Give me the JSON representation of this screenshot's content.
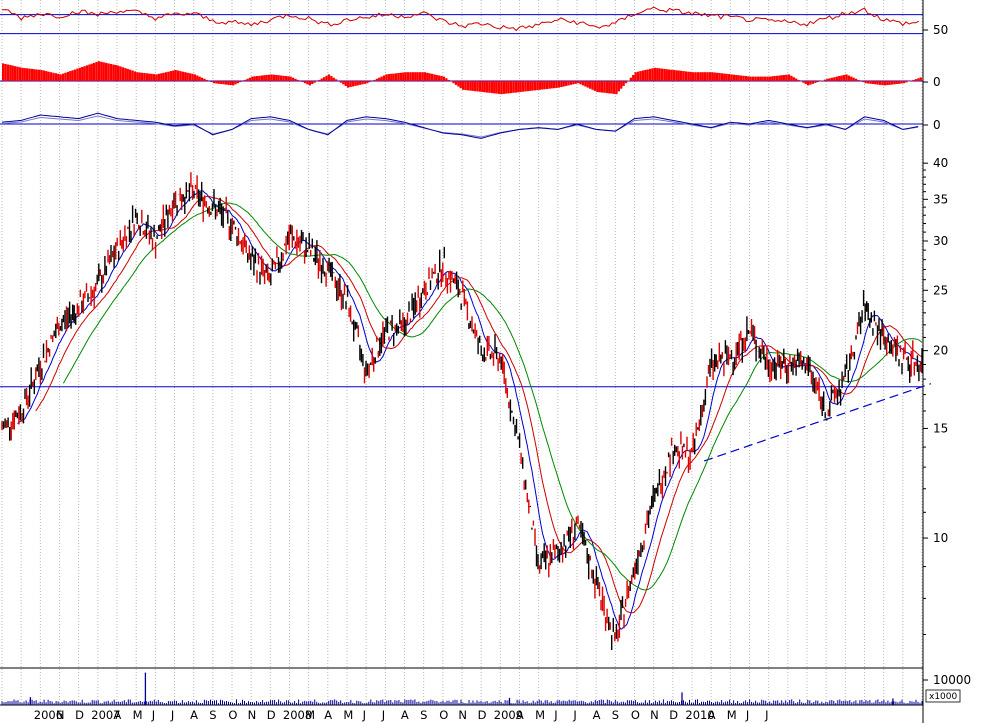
{
  "chart_data": {
    "type": "line",
    "x_type": "date",
    "x_range": [
      "2006-07",
      "2010-07"
    ],
    "price_axis": {
      "scale": "log",
      "ticks": [
        10,
        15,
        20,
        25,
        30,
        35,
        40
      ],
      "tick_labels": [
        "10",
        "15",
        "20",
        "25",
        "30",
        "35",
        "40"
      ],
      "ylim": [
        6.3,
        42
      ]
    },
    "support_line": 17.5,
    "trend_line": {
      "from": {
        "x": "2009-07-20",
        "y": 13.3
      },
      "to": {
        "x": "2010-07-15",
        "y": 17.7
      }
    },
    "price": {
      "x": [
        "2006-07",
        "2006-08",
        "2006-09",
        "2006-10",
        "2006-11",
        "2006-12",
        "2007-01",
        "2007-02",
        "2007-03",
        "2007-04",
        "2007-05",
        "2007-06",
        "2007-07",
        "2007-08",
        "2007-09",
        "2007-10",
        "2007-11",
        "2007-12",
        "2008-01",
        "2008-02",
        "2008-03",
        "2008-04",
        "2008-05",
        "2008-06",
        "2008-07",
        "2008-08",
        "2008-09",
        "2008-10",
        "2008-11",
        "2008-12",
        "2009-01",
        "2009-02",
        "2009-03",
        "2009-04",
        "2009-05",
        "2009-06",
        "2009-07",
        "2009-08",
        "2009-09",
        "2009-10",
        "2009-11",
        "2009-12",
        "2010-01",
        "2010-02",
        "2010-03",
        "2010-04",
        "2010-05",
        "2010-06",
        "2010-07"
      ],
      "values": [
        15.0,
        16.0,
        19.0,
        22.0,
        23.5,
        25.5,
        29.0,
        33.0,
        30.0,
        35.0,
        36.0,
        34.0,
        32.0,
        28.0,
        26.0,
        30.5,
        29.0,
        27.0,
        24.0,
        18.5,
        21.5,
        22.0,
        25.0,
        27.5,
        24.5,
        20.0,
        19.5,
        14.0,
        9.0,
        9.5,
        10.5,
        8.5,
        6.8,
        9.0,
        11.5,
        14.0,
        13.5,
        19.0,
        19.5,
        21.5,
        19.0,
        19.0,
        19.0,
        16.0,
        18.0,
        23.5,
        21.0,
        19.5,
        19.0
      ]
    },
    "moving_averages": [
      {
        "color": "#0000cc"
      },
      {
        "color": "#cc0000"
      },
      {
        "color": "#008800"
      }
    ],
    "indicators": [
      {
        "axis_label": "50",
        "color": "#cc0000",
        "style": "line",
        "values": [
          70,
          55,
          62,
          58,
          65,
          60,
          66,
          64,
          55,
          60,
          62,
          50,
          48,
          44,
          52,
          60,
          54,
          44,
          52,
          56,
          60,
          58,
          62,
          50,
          42,
          46,
          40,
          38,
          44,
          52,
          48,
          40,
          46,
          62,
          70,
          66,
          62,
          58,
          56,
          52,
          50,
          48,
          46,
          54,
          62,
          68,
          52,
          46,
          48
        ],
        "bands": [
          60,
          30
        ]
      },
      {
        "axis_label": "0",
        "color": "#ff0000",
        "style": "histogram",
        "values": [
          0.8,
          0.6,
          0.5,
          0.3,
          0.6,
          0.9,
          0.7,
          0.4,
          0.3,
          0.5,
          0.3,
          -0.1,
          -0.2,
          0.2,
          0.3,
          0.2,
          -0.2,
          0.3,
          -0.3,
          -0.1,
          0.3,
          0.4,
          0.4,
          0.2,
          -0.4,
          -0.5,
          -0.6,
          -0.5,
          -0.4,
          -0.3,
          -0.1,
          -0.5,
          -0.6,
          0.4,
          0.6,
          0.5,
          0.4,
          0.4,
          0.3,
          0.2,
          0.2,
          0.3,
          -0.2,
          0.1,
          0.3,
          -0.1,
          -0.2,
          -0.1,
          0.2
        ]
      },
      {
        "axis_label": "0",
        "color": "#000099",
        "style": "line",
        "values": [
          0.1,
          0.2,
          0.5,
          0.4,
          0.3,
          0.6,
          0.3,
          0.2,
          0.1,
          -0.1,
          0.0,
          -0.6,
          -0.3,
          0.3,
          0.4,
          0.2,
          -0.3,
          -0.6,
          0.2,
          0.4,
          0.3,
          0.1,
          -0.2,
          -0.5,
          -0.6,
          -0.8,
          -0.5,
          -0.3,
          -0.2,
          -0.3,
          0.0,
          -0.3,
          -0.4,
          0.3,
          0.4,
          0.2,
          0.0,
          -0.2,
          0.1,
          0.0,
          0.2,
          0.0,
          -0.2,
          0.0,
          -0.3,
          0.4,
          0.2,
          -0.3,
          -0.1
        ],
        "signal_color": "#7777cc"
      }
    ],
    "volume": {
      "axis_label": "10000",
      "unit_label": "x1000",
      "color": "#000099",
      "typical": 1200,
      "spikes": [
        {
          "x": "2007-02",
          "value": 9000
        },
        {
          "x": "2009-06",
          "value": 3500
        },
        {
          "x": "2006-08",
          "value": 2200
        },
        {
          "x": "2008-09",
          "value": 2000
        },
        {
          "x": "2010-05",
          "value": 1800
        }
      ],
      "ylim": [
        0,
        10000
      ]
    },
    "x_labels": [
      "2006",
      "N",
      "D",
      "2007",
      "A",
      "M",
      "J",
      "J",
      "A",
      "S",
      "O",
      "N",
      "D",
      "2008",
      "M",
      "A",
      "M",
      "J",
      "J",
      "A",
      "S",
      "O",
      "N",
      "D",
      "2009",
      "A",
      "M",
      "J",
      "J",
      "A",
      "S",
      "O",
      "N",
      "D",
      "2010",
      "A",
      "M",
      "J",
      "J"
    ],
    "grid": true,
    "title": "",
    "xlabel": "",
    "ylabel": ""
  }
}
